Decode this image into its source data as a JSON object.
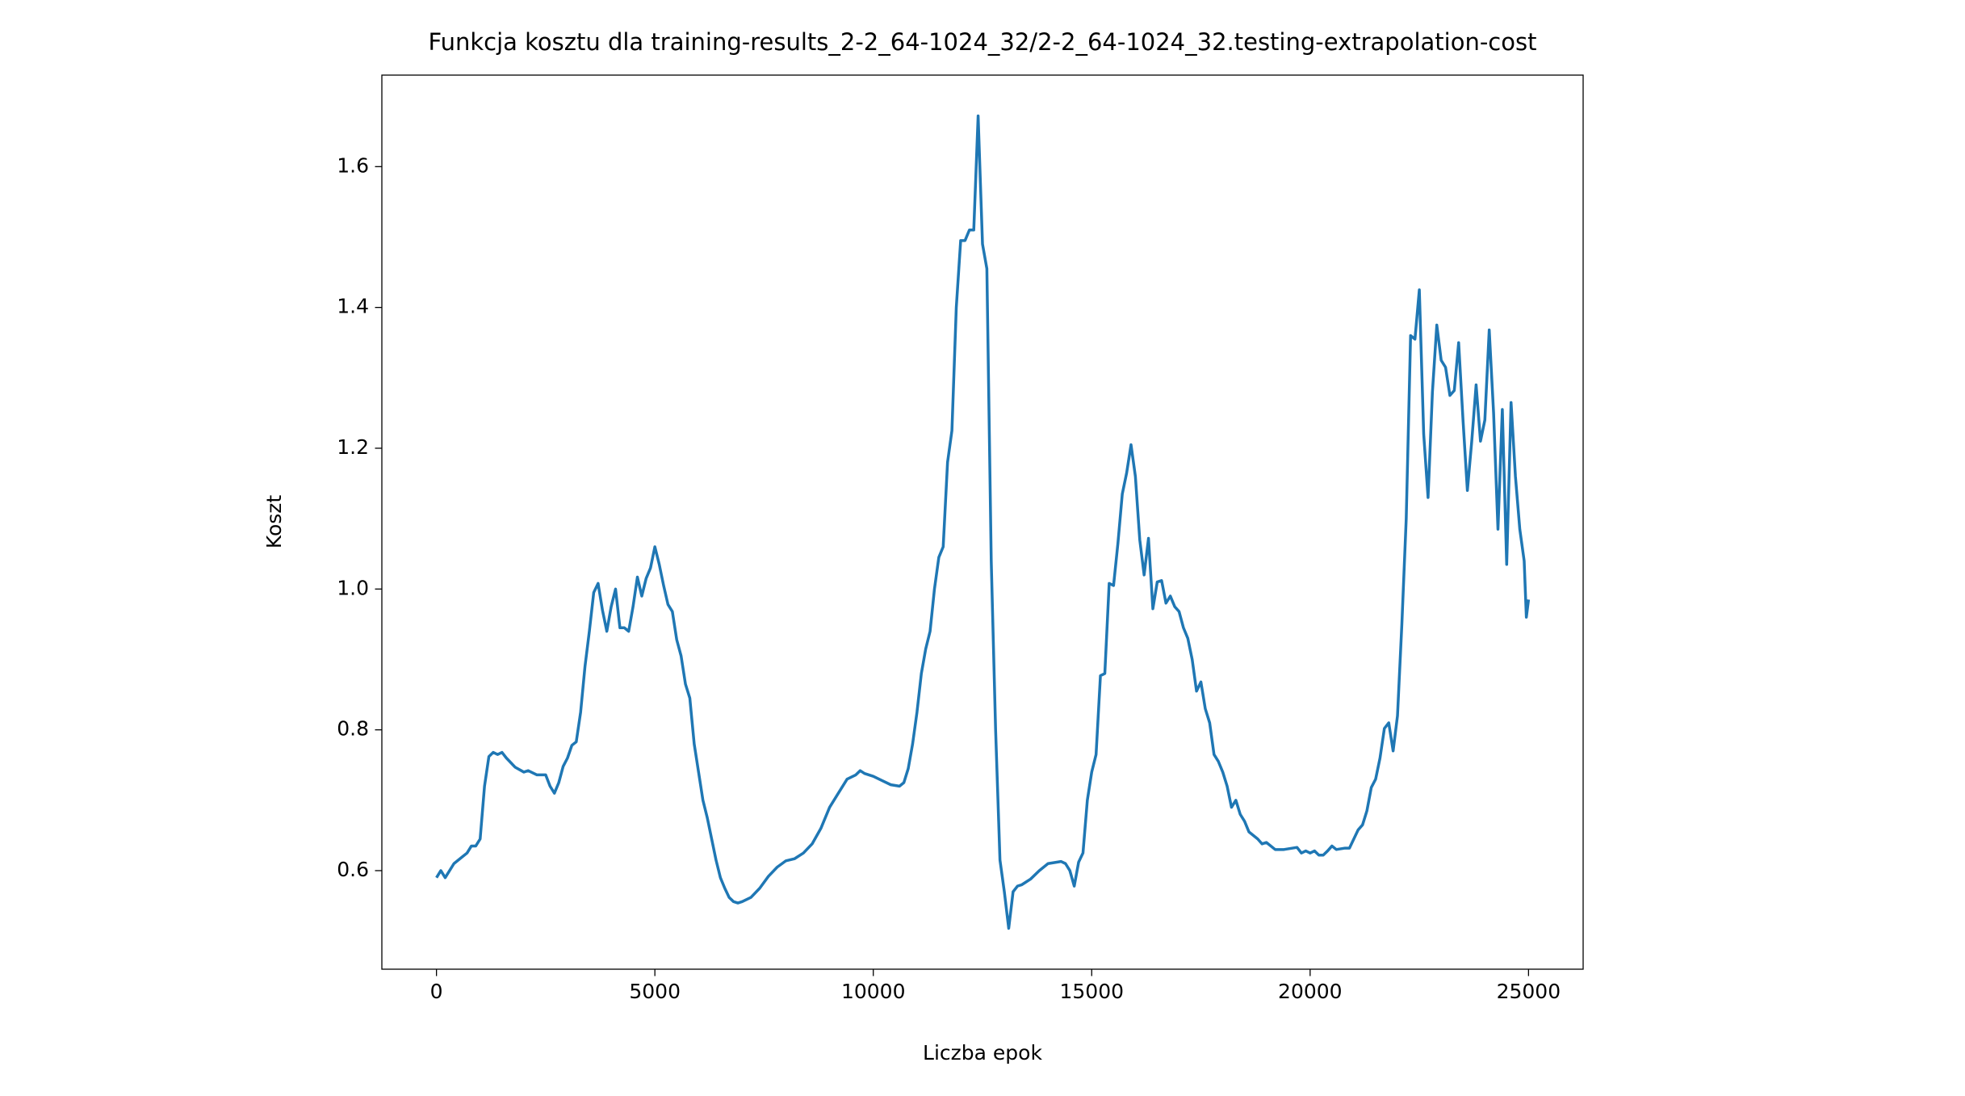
{
  "chart_data": {
    "type": "line",
    "title": "Funkcja kosztu dla training-results_2-2_64-1024_32/2-2_64-1024_32.testing-extrapolation-cost",
    "xlabel": "Liczba epok",
    "ylabel": "Koszt",
    "x": [
      0,
      100,
      200,
      400,
      600,
      700,
      800,
      900,
      1000,
      1100,
      1200,
      1300,
      1400,
      1500,
      1600,
      1800,
      2000,
      2100,
      2300,
      2500,
      2600,
      2700,
      2800,
      2900,
      3000,
      3100,
      3200,
      3300,
      3400,
      3500,
      3600,
      3700,
      3800,
      3900,
      4000,
      4100,
      4200,
      4300,
      4400,
      4500,
      4600,
      4700,
      4800,
      4900,
      5000,
      5100,
      5200,
      5300,
      5400,
      5500,
      5600,
      5700,
      5800,
      5900,
      6000,
      6100,
      6200,
      6300,
      6400,
      6500,
      6600,
      6700,
      6800,
      6900,
      7000,
      7200,
      7400,
      7600,
      7800,
      8000,
      8200,
      8400,
      8600,
      8800,
      9000,
      9200,
      9400,
      9600,
      9700,
      9800,
      10000,
      10200,
      10400,
      10600,
      10700,
      10800,
      10900,
      11000,
      11100,
      11200,
      11300,
      11400,
      11500,
      11600,
      11700,
      11800,
      11900,
      12000,
      12100,
      12200,
      12300,
      12400,
      12500,
      12600,
      12700,
      12800,
      12900,
      13000,
      13100,
      13200,
      13300,
      13400,
      13600,
      13800,
      14000,
      14200,
      14300,
      14400,
      14500,
      14600,
      14700,
      14800,
      14900,
      15000,
      15100,
      15200,
      15300,
      15400,
      15500,
      15600,
      15700,
      15800,
      15900,
      16000,
      16100,
      16200,
      16300,
      16400,
      16500,
      16600,
      16700,
      16800,
      16900,
      17000,
      17100,
      17200,
      17300,
      17400,
      17500,
      17600,
      17700,
      17800,
      17900,
      18000,
      18100,
      18200,
      18300,
      18400,
      18500,
      18600,
      18800,
      18900,
      19000,
      19200,
      19400,
      19600,
      19700,
      19800,
      19900,
      20000,
      20100,
      20200,
      20300,
      20400,
      20500,
      20600,
      20800,
      20900,
      21000,
      21100,
      21200,
      21300,
      21400,
      21500,
      21600,
      21700,
      21800,
      21900,
      22000,
      22100,
      22200,
      22300,
      22400,
      22500,
      22600,
      22700,
      22800,
      22900,
      23000,
      23100,
      23200,
      23300,
      23400,
      23500,
      23600,
      23700,
      23800,
      23900,
      24000,
      24100,
      24200,
      24300,
      24400,
      24500,
      24600,
      24700,
      24800,
      24900,
      24950,
      25000
    ],
    "series": [
      {
        "color": "#1f77b4",
        "values": [
          0.59,
          0.6,
          0.59,
          0.61,
          0.62,
          0.625,
          0.635,
          0.635,
          0.645,
          0.72,
          0.762,
          0.768,
          0.765,
          0.768,
          0.76,
          0.747,
          0.74,
          0.742,
          0.736,
          0.736,
          0.72,
          0.71,
          0.725,
          0.748,
          0.76,
          0.778,
          0.783,
          0.825,
          0.89,
          0.94,
          0.995,
          1.008,
          0.97,
          0.94,
          0.975,
          1.0,
          0.945,
          0.945,
          0.94,
          0.975,
          1.017,
          0.99,
          1.015,
          1.03,
          1.06,
          1.035,
          1.005,
          0.978,
          0.968,
          0.928,
          0.905,
          0.865,
          0.845,
          0.78,
          0.74,
          0.7,
          0.675,
          0.645,
          0.615,
          0.59,
          0.575,
          0.562,
          0.556,
          0.554,
          0.556,
          0.562,
          0.575,
          0.592,
          0.605,
          0.614,
          0.617,
          0.625,
          0.638,
          0.66,
          0.69,
          0.71,
          0.73,
          0.736,
          0.742,
          0.738,
          0.734,
          0.728,
          0.722,
          0.72,
          0.725,
          0.745,
          0.78,
          0.825,
          0.88,
          0.915,
          0.94,
          1.0,
          1.045,
          1.06,
          1.18,
          1.225,
          1.4,
          1.495,
          1.495,
          1.51,
          1.51,
          1.672,
          1.49,
          1.455,
          1.04,
          0.8,
          0.615,
          0.57,
          0.518,
          0.57,
          0.578,
          0.58,
          0.588,
          0.6,
          0.61,
          0.612,
          0.613,
          0.61,
          0.6,
          0.578,
          0.612,
          0.625,
          0.7,
          0.74,
          0.765,
          0.877,
          0.88,
          1.008,
          1.005,
          1.065,
          1.135,
          1.165,
          1.205,
          1.16,
          1.07,
          1.02,
          1.072,
          0.972,
          1.01,
          1.012,
          0.98,
          0.99,
          0.975,
          0.968,
          0.945,
          0.93,
          0.9,
          0.855,
          0.868,
          0.83,
          0.81,
          0.765,
          0.755,
          0.74,
          0.72,
          0.69,
          0.7,
          0.68,
          0.67,
          0.655,
          0.645,
          0.638,
          0.64,
          0.63,
          0.63,
          0.632,
          0.633,
          0.625,
          0.628,
          0.625,
          0.628,
          0.622,
          0.622,
          0.628,
          0.635,
          0.63,
          0.632,
          0.632,
          0.645,
          0.658,
          0.665,
          0.685,
          0.718,
          0.73,
          0.76,
          0.802,
          0.81,
          0.77,
          0.82,
          0.95,
          1.1,
          1.36,
          1.355,
          1.425,
          1.22,
          1.13,
          1.28,
          1.375,
          1.325,
          1.315,
          1.275,
          1.282,
          1.35,
          1.24,
          1.14,
          1.21,
          1.29,
          1.21,
          1.24,
          1.368,
          1.25,
          1.085,
          1.255,
          1.035,
          1.265,
          1.16,
          1.085,
          1.04,
          0.96,
          0.985
        ]
      }
    ],
    "xlim": [
      -1250,
      26250
    ],
    "xticks": [
      0,
      5000,
      10000,
      15000,
      20000,
      25000
    ],
    "ylim": [
      0.46,
      1.73
    ],
    "yticks": [
      {
        "value": 0.6,
        "label": "0.6"
      },
      {
        "value": 0.8,
        "label": "0.8"
      },
      {
        "value": 1.0,
        "label": "1.0"
      },
      {
        "value": 1.2,
        "label": "1.2"
      },
      {
        "value": 1.4,
        "label": "1.4"
      },
      {
        "value": 1.6,
        "label": "1.6"
      }
    ],
    "grid": false
  }
}
